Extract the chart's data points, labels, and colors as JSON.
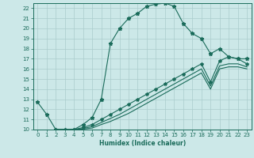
{
  "xlabel": "Humidex (Indice chaleur)",
  "ylabel": "",
  "bg_color": "#cce8e8",
  "grid_color": "#aacccc",
  "line_color": "#1a6b5a",
  "xlim": [
    -0.5,
    23.5
  ],
  "ylim": [
    10,
    22.5
  ],
  "xticks": [
    0,
    1,
    2,
    3,
    4,
    5,
    6,
    7,
    8,
    9,
    10,
    11,
    12,
    13,
    14,
    15,
    16,
    17,
    18,
    19,
    20,
    21,
    22,
    23
  ],
  "yticks": [
    10,
    11,
    12,
    13,
    14,
    15,
    16,
    17,
    18,
    19,
    20,
    21,
    22
  ],
  "curve1_x": [
    0,
    1,
    2,
    3,
    4,
    5,
    6,
    7,
    8,
    9,
    10,
    11,
    12,
    13,
    14,
    15,
    16,
    17,
    18,
    19,
    20,
    21,
    22,
    23
  ],
  "curve1_y": [
    12.7,
    11.5,
    10.0,
    10.0,
    10.0,
    10.5,
    11.2,
    13.0,
    18.5,
    20.0,
    21.0,
    21.5,
    22.2,
    22.4,
    22.5,
    22.2,
    20.5,
    19.5,
    19.0,
    17.5,
    18.0,
    17.2,
    17.0,
    17.0
  ],
  "curve2_x": [
    2,
    3,
    4,
    5,
    6,
    7,
    8,
    9,
    10,
    11,
    12,
    13,
    14,
    15,
    16,
    17,
    18,
    19,
    20,
    21,
    22,
    23
  ],
  "curve2_y": [
    10.0,
    10.0,
    10.0,
    10.2,
    10.5,
    11.0,
    11.5,
    12.0,
    12.5,
    13.0,
    13.5,
    14.0,
    14.5,
    15.0,
    15.5,
    16.0,
    16.5,
    14.7,
    16.8,
    17.2,
    17.0,
    16.5
  ],
  "curve3_x": [
    2,
    3,
    4,
    5,
    6,
    7,
    8,
    9,
    10,
    11,
    12,
    13,
    14,
    15,
    16,
    17,
    18,
    19,
    20,
    21,
    22,
    23
  ],
  "curve3_y": [
    10.0,
    10.0,
    10.0,
    10.1,
    10.3,
    10.7,
    11.1,
    11.5,
    12.0,
    12.5,
    13.0,
    13.5,
    14.0,
    14.5,
    15.0,
    15.5,
    16.0,
    14.3,
    16.3,
    16.5,
    16.5,
    16.2
  ],
  "curve4_x": [
    2,
    3,
    4,
    5,
    6,
    7,
    8,
    9,
    10,
    11,
    12,
    13,
    14,
    15,
    16,
    17,
    18,
    19,
    20,
    21,
    22,
    23
  ],
  "curve4_y": [
    10.0,
    10.0,
    10.0,
    10.05,
    10.15,
    10.5,
    10.8,
    11.2,
    11.6,
    12.1,
    12.6,
    13.1,
    13.6,
    14.1,
    14.6,
    15.1,
    15.6,
    14.0,
    16.0,
    16.2,
    16.2,
    16.0
  ]
}
